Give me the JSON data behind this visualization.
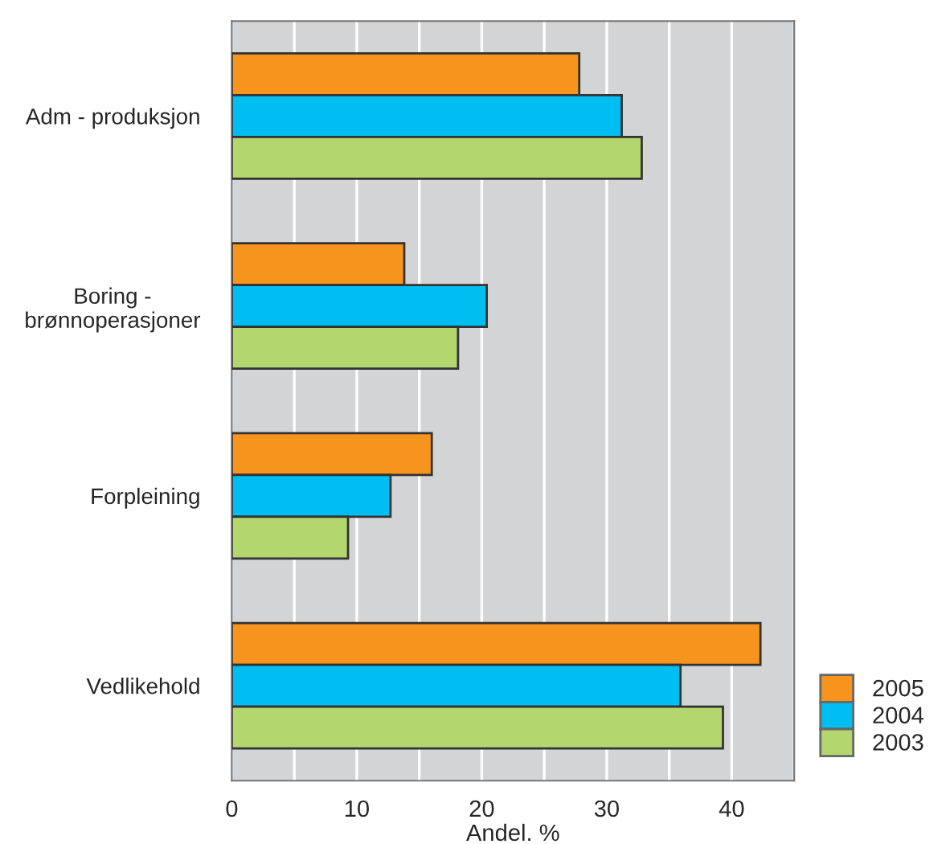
{
  "chart_data": {
    "type": "bar",
    "orientation": "horizontal",
    "xlabel": "Andel. %",
    "categories": [
      "Adm - produksjon",
      "Boring -\nbrønnoperasjoner",
      "Forpleining",
      "Vedlikehold"
    ],
    "series": [
      {
        "name": "2005",
        "color": "#f7941d",
        "values": [
          27.8,
          13.8,
          16.0,
          42.3
        ]
      },
      {
        "name": "2004",
        "color": "#00bdf2",
        "values": [
          31.2,
          20.4,
          12.7,
          35.9
        ]
      },
      {
        "name": "2003",
        "color": "#b3d66f",
        "values": [
          32.8,
          18.1,
          9.3,
          39.3
        ]
      }
    ],
    "xlim": [
      0,
      45
    ],
    "xticks": [
      0,
      {
        "value": 5,
        "label": null
      },
      10,
      {
        "value": 15,
        "label": null
      },
      20,
      {
        "value": 25,
        "label": null
      },
      30,
      {
        "value": 35,
        "label": null
      },
      40,
      {
        "value": 45,
        "label": null
      }
    ],
    "grid": "x",
    "legend": "bottom right"
  }
}
